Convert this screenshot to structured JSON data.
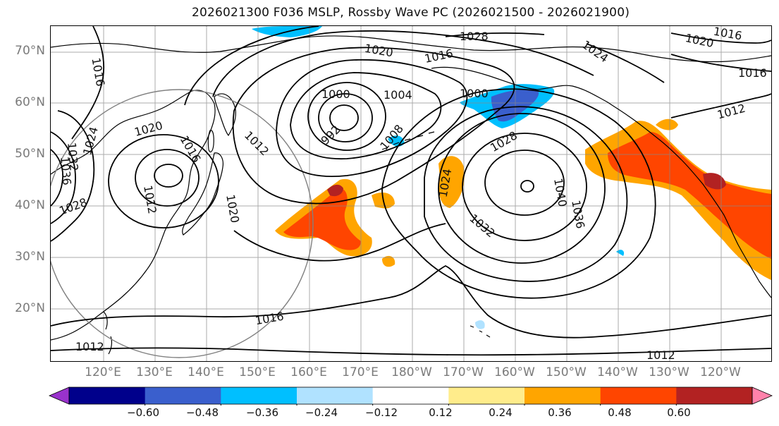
{
  "title": "2026021300 F036 MSLP, Rossby Wave PC (2026021500 - 2026021900)",
  "lat_labels": [
    "70°N",
    "60°N",
    "50°N",
    "40°N",
    "30°N",
    "20°N"
  ],
  "lon_labels": [
    "120°E",
    "130°E",
    "140°E",
    "150°E",
    "160°E",
    "170°E",
    "180°W",
    "170°W",
    "160°W",
    "150°W",
    "140°W",
    "130°W",
    "120°W"
  ],
  "colorbar": {
    "colors": [
      "#9932cc",
      "#00008b",
      "#3a5fcd",
      "#00bfff",
      "#b0e2ff",
      "#ffffff",
      "#ffec8b",
      "#ffa500",
      "#ff4500",
      "#b22222",
      "#ff82ab"
    ],
    "tick_labels": [
      "−0.60",
      "−0.48",
      "−0.36",
      "−0.24",
      "−0.12",
      "0.12",
      "0.24",
      "0.36",
      "0.48",
      "0.60"
    ]
  },
  "contour_labels": [
    "1016",
    "1028",
    "1020",
    "1016",
    "1024",
    "1016",
    "1020",
    "1016",
    "1000",
    "1004",
    "1000",
    "1008",
    "992",
    "1028",
    "1020",
    "1016",
    "1012",
    "1032",
    "1024",
    "1036",
    "1028",
    "1012",
    "1020",
    "1024",
    "1040",
    "1036",
    "1032",
    "1016",
    "1012",
    "1012",
    "1012"
  ],
  "colors": {
    "contour": "#000000",
    "grid": "#888888",
    "coast": "#000000",
    "circle": "#808080"
  }
}
